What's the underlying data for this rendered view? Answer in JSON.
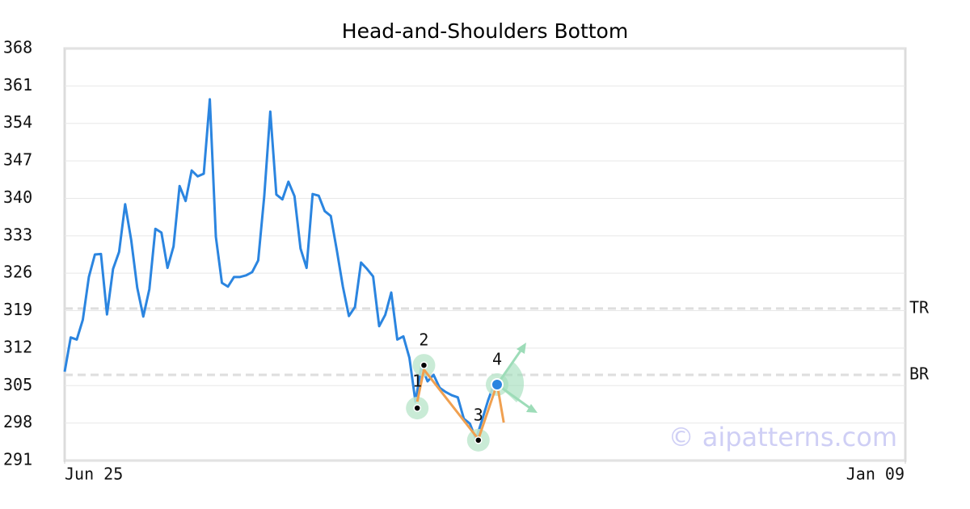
{
  "chart_data": {
    "type": "line",
    "title": "Head-and-Shoulders Bottom",
    "x": [
      0,
      1,
      2,
      3,
      4,
      5,
      6,
      7,
      8,
      9,
      10,
      11,
      12,
      13,
      14,
      15,
      16,
      17,
      18,
      19,
      20,
      21,
      22,
      23,
      24,
      25,
      26,
      27,
      28,
      29,
      30,
      31,
      32,
      33,
      34,
      35,
      36,
      37,
      38,
      39,
      40,
      41,
      42,
      43,
      44,
      45,
      46,
      47,
      48,
      49,
      50,
      51,
      52,
      53,
      54,
      55,
      56,
      57,
      58,
      59,
      60,
      61,
      62,
      63,
      64,
      65,
      66,
      67,
      68,
      69,
      70,
      71
    ],
    "series": [
      {
        "color": "#2b85e0",
        "values": [
          307.6,
          314,
          313.6,
          317.3,
          325.3,
          329.5,
          329.6,
          318.3,
          326.8,
          330,
          338.9,
          332.2,
          323.3,
          317.9,
          323,
          334.3,
          333.6,
          327,
          331,
          342.3,
          339.5,
          345.2,
          344.1,
          344.6,
          358.5,
          332.8,
          324.2,
          323.5,
          325.3,
          325.3,
          325.6,
          326.2,
          328.4,
          340.4,
          356.2,
          340.7,
          339.8,
          343.1,
          340.4,
          330.6,
          327,
          340.8,
          340.5,
          337.6,
          336.7,
          330.3,
          323.5,
          318,
          319.7,
          328,
          326.8,
          325.4,
          316.1,
          318.2,
          322.4,
          313.6,
          314.2,
          310.2,
          302,
          308.7,
          305.8,
          307,
          304.6,
          303.8,
          303.2,
          302.8,
          298.8,
          297.9,
          295,
          298.5,
          302.2,
          305.3
        ]
      }
    ],
    "pattern_line": {
      "color": "#f0a050",
      "x": [
        58.3,
        59.4,
        68.4,
        71.5,
        72.6
      ],
      "values": [
        302,
        308,
        295,
        305.3,
        298.1
      ]
    },
    "pattern_points": {
      "labels": [
        "1",
        "2",
        "3",
        "4"
      ],
      "x": [
        58.3,
        59.4,
        68.4,
        71.5
      ],
      "values": [
        300.8,
        308.8,
        294.8,
        305.2
      ]
    },
    "levels": [
      {
        "label": "TR",
        "value": 319.4
      },
      {
        "label": "BR",
        "value": 307.0
      }
    ],
    "xlim": [
      0,
      139
    ],
    "xticks": [
      {
        "value": 0,
        "label": "Jun 25"
      },
      {
        "value": 139,
        "label": "Jan 09"
      }
    ],
    "ylim": [
      291,
      368
    ],
    "yticks": [
      291,
      298,
      305,
      312,
      319,
      326,
      333,
      340,
      347,
      354,
      361,
      368
    ],
    "grid": true,
    "watermark": "© aipatterns.com"
  }
}
